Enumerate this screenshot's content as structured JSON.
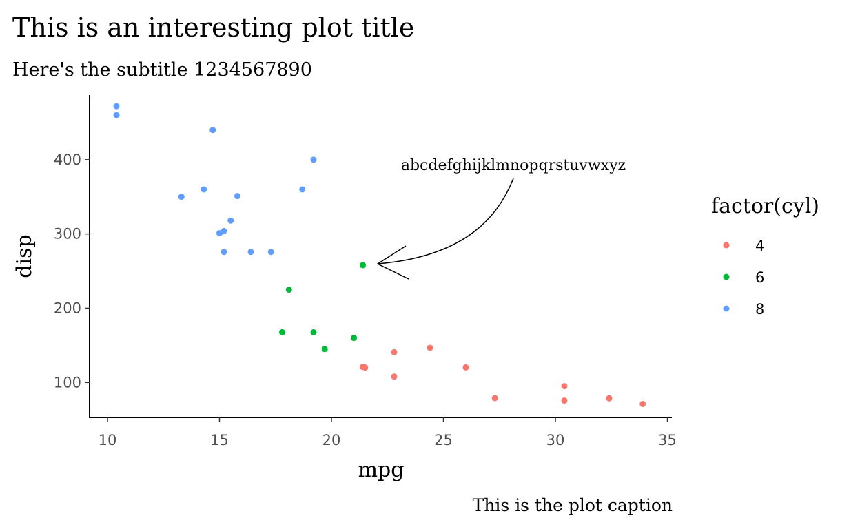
{
  "chart_data": {
    "type": "scatter",
    "title": "This is an interesting plot title",
    "subtitle": "Here's the subtitle 1234567890",
    "caption": "This is the plot caption",
    "xlabel": "mpg",
    "ylabel": "disp",
    "xlim": [
      9.2,
      35.2
    ],
    "ylim": [
      53,
      487
    ],
    "x_ticks": [
      10,
      15,
      20,
      25,
      30,
      35
    ],
    "y_ticks": [
      100,
      200,
      300,
      400
    ],
    "grid": false,
    "legend": {
      "title": "factor(cyl)",
      "placement": "right"
    },
    "annotation": {
      "text": "abcdefghijklmnopqrstuvwxyz",
      "points_to": [
        21.4,
        258
      ]
    },
    "series": [
      {
        "name": "4",
        "color": "#F8766D",
        "points": [
          [
            22.8,
            108
          ],
          [
            24.4,
            146.7
          ],
          [
            22.8,
            140.8
          ],
          [
            32.4,
            78.7
          ],
          [
            30.4,
            75.7
          ],
          [
            33.9,
            71.1
          ],
          [
            21.5,
            120.1
          ],
          [
            27.3,
            79
          ],
          [
            26,
            120.3
          ],
          [
            30.4,
            95.1
          ],
          [
            21.4,
            121
          ]
        ]
      },
      {
        "name": "6",
        "color": "#00BA38",
        "points": [
          [
            21,
            160
          ],
          [
            21,
            160
          ],
          [
            21.4,
            258
          ],
          [
            18.1,
            225
          ],
          [
            19.2,
            167.6
          ],
          [
            17.8,
            167.6
          ],
          [
            19.7,
            145
          ]
        ]
      },
      {
        "name": "8",
        "color": "#619CFF",
        "points": [
          [
            18.7,
            360
          ],
          [
            14.3,
            360
          ],
          [
            16.4,
            275.8
          ],
          [
            17.3,
            275.8
          ],
          [
            15.2,
            275.8
          ],
          [
            10.4,
            472
          ],
          [
            10.4,
            460
          ],
          [
            14.7,
            440
          ],
          [
            15.5,
            318
          ],
          [
            15.2,
            304
          ],
          [
            13.3,
            350
          ],
          [
            19.2,
            400
          ],
          [
            15.8,
            351
          ],
          [
            15,
            301
          ]
        ]
      }
    ]
  }
}
